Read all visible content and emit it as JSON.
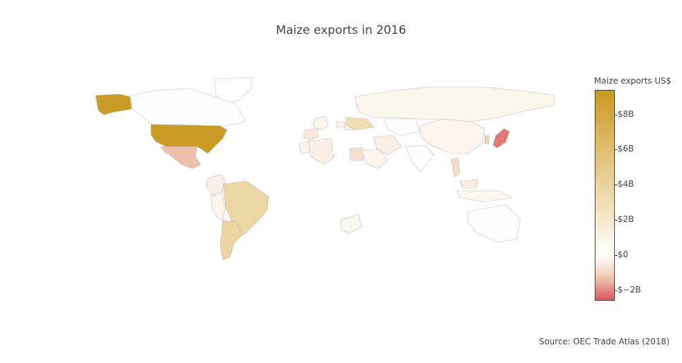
{
  "title": "Maize exports in 2016",
  "source": "Source: OEC Trade Atlas (2018)",
  "colorbar": {
    "title": "Maize exports US$",
    "ticks": [
      "$8B",
      "$6B",
      "$4B",
      "$2B",
      "$0",
      "$−2B"
    ],
    "tick_values": [
      8,
      6,
      4,
      2,
      0,
      -2
    ],
    "range": [
      -2.6,
      9.4
    ],
    "colorscale": [
      "#d9575a",
      "#f0c9b2",
      "#ffffff",
      "#efdcb0",
      "#dfba6a",
      "#c9991e"
    ]
  },
  "map_data": {
    "type": "choropleth",
    "projection": "robinson",
    "value_unit": "US$ billions",
    "regions": [
      {
        "name": "United States",
        "value": 9.1
      },
      {
        "name": "Brazil",
        "value": 3.7
      },
      {
        "name": "Argentina",
        "value": 3.9
      },
      {
        "name": "Ukraine",
        "value": 3.0
      },
      {
        "name": "Mexico",
        "value": -1.4
      },
      {
        "name": "Japan",
        "value": -2.2
      },
      {
        "name": "South Korea",
        "value": -1.1
      },
      {
        "name": "Vietnam",
        "value": -0.9
      },
      {
        "name": "Egypt",
        "value": -0.8
      },
      {
        "name": "Spain",
        "value": -0.6
      },
      {
        "name": "Colombia",
        "value": -0.4
      },
      {
        "name": "Peru",
        "value": -0.3
      },
      {
        "name": "Iran",
        "value": -0.4
      },
      {
        "name": "Saudi Arabia",
        "value": -0.3
      },
      {
        "name": "Algeria",
        "value": -0.4
      },
      {
        "name": "Morocco",
        "value": -0.3
      },
      {
        "name": "China",
        "value": -0.3
      },
      {
        "name": "Malaysia",
        "value": -0.5
      },
      {
        "name": "Indonesia",
        "value": -0.2
      },
      {
        "name": "Russia",
        "value": 0.8
      },
      {
        "name": "South Africa",
        "value": 0.6
      },
      {
        "name": "Romania",
        "value": 1.2
      },
      {
        "name": "Hungary",
        "value": 0.9
      },
      {
        "name": "France",
        "value": 0.9
      },
      {
        "name": "Canada",
        "value": 0.1
      },
      {
        "name": "Australia",
        "value": 0.1
      },
      {
        "name": "India",
        "value": 0.1
      },
      {
        "name": "Kazakhstan",
        "value": 0.05
      },
      {
        "name": "Greenland",
        "value": 0.0
      }
    ]
  }
}
